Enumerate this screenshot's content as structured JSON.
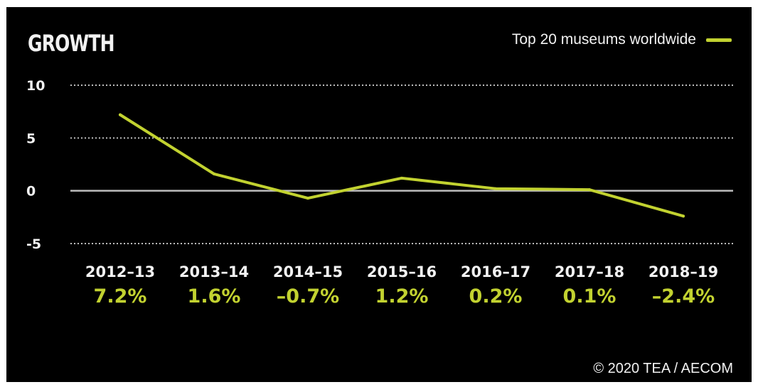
{
  "chart_data": {
    "type": "line",
    "title": "GROWTH",
    "categories": [
      "2012–13",
      "2013–14",
      "2014–15",
      "2015–16",
      "2016–17",
      "2017–18",
      "2018–19"
    ],
    "series": [
      {
        "name": "Top 20 museums worldwide",
        "values": [
          7.2,
          1.6,
          -0.7,
          1.2,
          0.2,
          0.1,
          -2.4
        ],
        "color": "#c2d230"
      }
    ],
    "data_labels": [
      "7.2%",
      "1.6%",
      "–0.7%",
      "1.2%",
      "0.2%",
      "0.1%",
      "–2.4%"
    ],
    "ylim": [
      -5,
      10
    ],
    "yticks": [
      "10",
      "5",
      "0",
      "-5"
    ],
    "grid": true,
    "legend": "top-right",
    "colors": {
      "background": "#000000",
      "text": "#f2f2f2",
      "grid": "#bdbdbd",
      "zero_line": "#bdbdbd",
      "accent": "#c2d230"
    }
  },
  "footer": {
    "copyright": "© 2020 TEA / AECOM"
  }
}
